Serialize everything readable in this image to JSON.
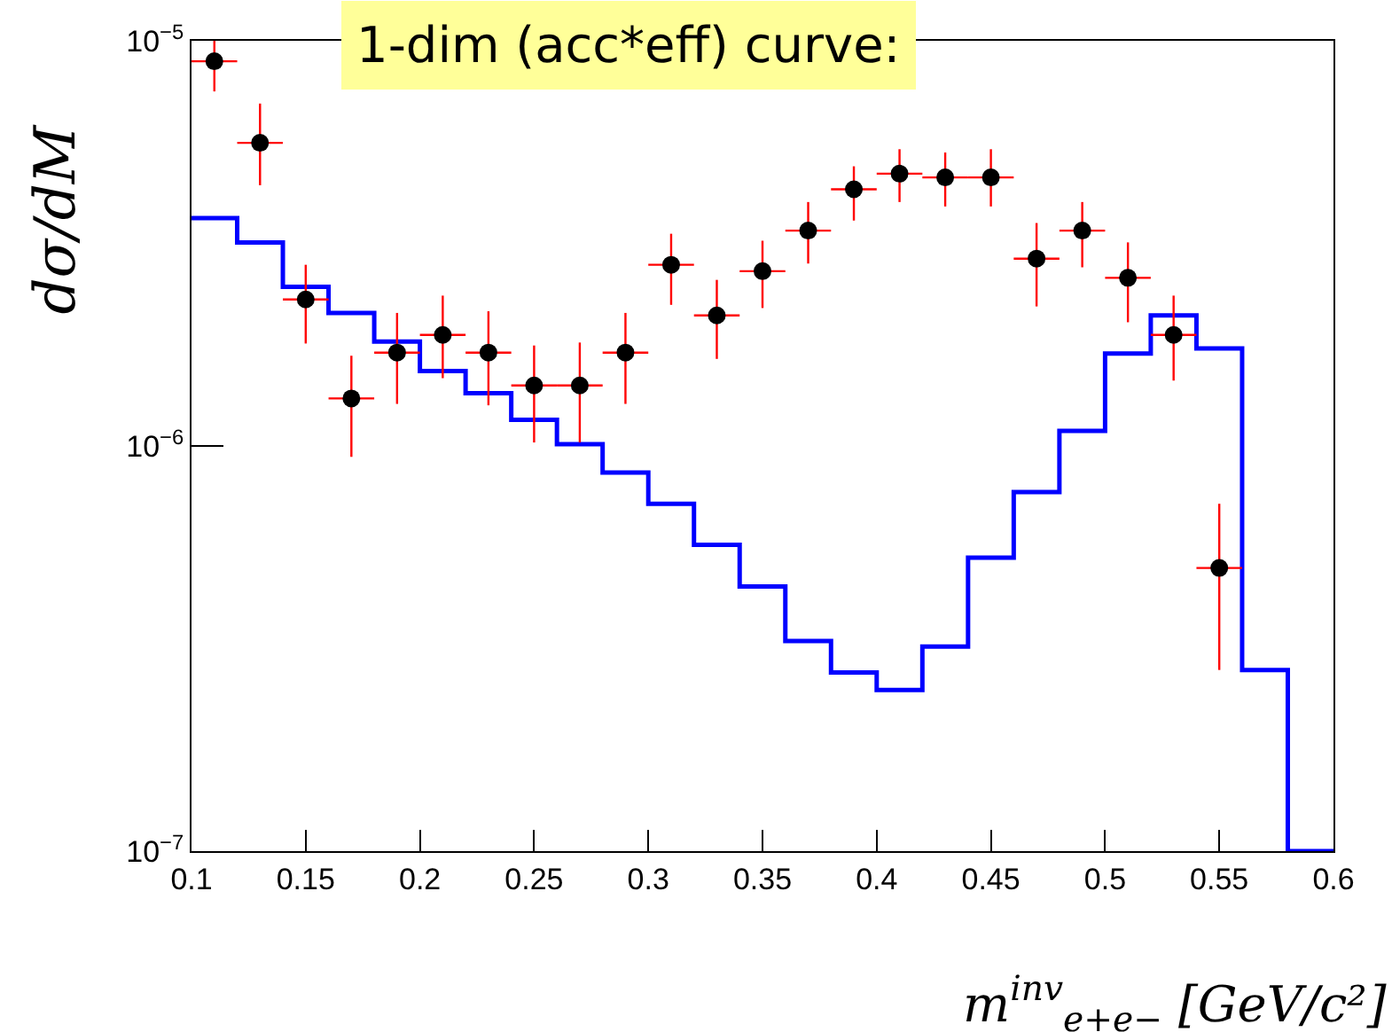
{
  "chart_data": {
    "type": "scatter",
    "title": "1-dim (acc*eff) curve:",
    "xlabel": "m$^{inv}$$_{e+e−}$ [GeV/c²]",
    "ylabel": "dσ/dM",
    "log": "y",
    "grid": false,
    "marker": "circle",
    "xlim": [
      0.1,
      0.6
    ],
    "xticks": [
      0.1,
      0.15,
      0.2,
      0.25,
      0.3,
      0.35,
      0.4,
      0.45,
      0.5,
      0.55,
      0.6
    ],
    "ylim": [
      1e-07,
      1e-05
    ],
    "yticks": [
      {
        "value": 1e-07,
        "label": "10$^{−7}$"
      },
      {
        "value": 1e-06,
        "label": "10$^{−6}$"
      },
      {
        "value": 1e-05,
        "label": "10$^{−5}$"
      }
    ],
    "series": [
      {
        "type": "histogram",
        "color": "#0000ff",
        "bins": [
          0.1,
          0.12,
          0.14,
          0.16,
          0.18,
          0.2,
          0.22,
          0.24,
          0.26,
          0.28,
          0.3,
          0.32,
          0.34,
          0.36,
          0.38,
          0.4,
          0.42,
          0.44,
          0.46,
          0.48,
          0.5,
          0.52,
          0.54,
          0.56,
          0.58,
          0.6
        ],
        "values": [
          3.65e-06,
          3.18e-06,
          2.47e-06,
          2.13e-06,
          1.81e-06,
          1.53e-06,
          1.35e-06,
          1.16e-06,
          1.01e-06,
          8.6e-07,
          7.2e-07,
          5.7e-07,
          4.5e-07,
          3.3e-07,
          2.76e-07,
          2.5e-07,
          3.2e-07,
          5.3e-07,
          7.7e-07,
          1.09e-06,
          1.69e-06,
          2.1e-06,
          1.74e-06,
          2.8e-07,
          1e-07
        ]
      },
      {
        "type": "scatter",
        "color": "#000000",
        "x": [
          0.11,
          0.13,
          0.15,
          0.17,
          0.19,
          0.21,
          0.23,
          0.25,
          0.27,
          0.29,
          0.31,
          0.33,
          0.35,
          0.37,
          0.39,
          0.41,
          0.43,
          0.45,
          0.47,
          0.49,
          0.51,
          0.53,
          0.55
        ],
        "values": [
          8.9e-06,
          5.6e-06,
          2.3e-06,
          1.31e-06,
          1.7e-06,
          1.88e-06,
          1.7e-06,
          1.41e-06,
          1.41e-06,
          1.7e-06,
          2.8e-06,
          2.1e-06,
          2.7e-06,
          3.4e-06,
          4.3e-06,
          4.7e-06,
          4.6e-06,
          4.6e-06,
          2.9e-06,
          3.4e-06,
          2.6e-06,
          1.88e-06,
          5e-07
        ],
        "errors": [
          [
            7.5e-06,
            1e-05
          ],
          [
            4.4e-06,
            7e-06
          ],
          [
            1.79e-06,
            2.8e-06
          ],
          [
            9.4e-07,
            1.67e-06
          ],
          [
            1.27e-06,
            2.13e-06
          ],
          [
            1.47e-06,
            2.35e-06
          ],
          [
            1.26e-06,
            2.15e-06
          ],
          [
            1.02e-06,
            1.77e-06
          ],
          [
            1.02e-06,
            1.8e-06
          ],
          [
            1.27e-06,
            2.13e-06
          ],
          [
            2.23e-06,
            3.34e-06
          ],
          [
            1.64e-06,
            2.57e-06
          ],
          [
            2.19e-06,
            3.21e-06
          ],
          [
            2.82e-06,
            4e-06
          ],
          [
            3.6e-06,
            4.9e-06
          ],
          [
            4e-06,
            5.4e-06
          ],
          [
            3.9e-06,
            5.3e-06
          ],
          [
            3.9e-06,
            5.4e-06
          ],
          [
            2.21e-06,
            3.55e-06
          ],
          [
            2.76e-06,
            4e-06
          ],
          [
            2.02e-06,
            3.18e-06
          ],
          [
            1.45e-06,
            2.35e-06
          ],
          [
            2.8e-07,
            7.2e-07
          ]
        ],
        "xerrors": [
          0.01,
          0.01,
          0.01,
          0.01,
          0.01,
          0.01,
          0.01,
          0.01,
          0.01,
          0.01,
          0.01,
          0.01,
          0.01,
          0.01,
          0.01,
          0.01,
          0.01,
          0.01,
          0.01,
          0.01,
          0.01,
          0.01,
          0.01
        ]
      }
    ]
  }
}
